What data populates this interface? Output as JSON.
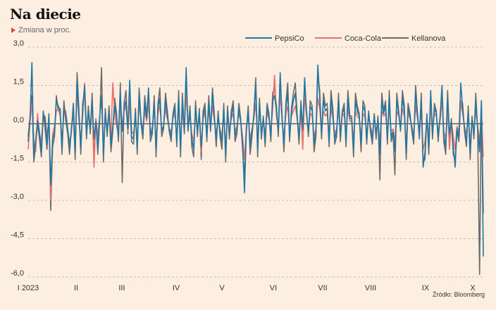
{
  "header": {
    "title": "Na diecie",
    "subtitle": "Zmiana w proc."
  },
  "footer": {
    "source": "Źródło: Bloomberg"
  },
  "colors": {
    "background": "#fcefe2",
    "pepsico": "#1f78a4",
    "cocacola": "#e9706a",
    "kellanova": "#6b6b6b",
    "accent": "#e8403a"
  },
  "chart_data": {
    "type": "line",
    "title": "Na diecie",
    "subtitle": "Zmiana w proc.",
    "xlabel": "",
    "ylabel": "",
    "ylim": [
      -6.0,
      3.0
    ],
    "y_ticks": [
      "3,0",
      "1,5",
      "0,0",
      "-1,5",
      "-3,0",
      "-4,5",
      "-6,0"
    ],
    "y_tick_values": [
      3.0,
      1.5,
      0.0,
      -1.5,
      -3.0,
      -4.5,
      -6.0
    ],
    "x_tick_labels": [
      "I 2023",
      "II",
      "III",
      "IV",
      "V",
      "VI",
      "VII",
      "VIII",
      "IX",
      "X"
    ],
    "grid": "horizontal dashed",
    "legend_position": "top-right",
    "series": [
      {
        "name": "PepsiCo",
        "values": [
          -0.7,
          0.2,
          2.4,
          -1.3,
          -0.6,
          0.1,
          -0.3,
          -1.1,
          0.4,
          0.2,
          -0.8,
          0.3,
          -2.4,
          -0.6,
          -0.3,
          0.9,
          0.7,
          0.5,
          -0.9,
          0.6,
          0.3,
          -0.2,
          -0.9,
          -0.3,
          0.8,
          -1.1,
          1.7,
          0.3,
          -0.9,
          0.6,
          1.5,
          -0.4,
          0.5,
          -0.2,
          0.9,
          -0.6,
          0.1,
          -0.9,
          0.2,
          1.1,
          -1.2,
          0.4,
          -0.3,
          0.5,
          -0.8,
          -0.1,
          0.7,
          0.2,
          -0.5,
          1.2,
          -0.3,
          0.6,
          0.9,
          -0.2,
          1.7,
          -0.5,
          -0.6,
          0.4,
          -0.9,
          1.2,
          0.1,
          -0.4,
          0.8,
          0.2,
          1.4,
          -0.5,
          -0.2,
          0.8,
          -1.0,
          0.6,
          1.0,
          -0.3,
          -0.1,
          0.9,
          0.3,
          -0.2,
          -0.5,
          0.3,
          0.6,
          -0.7,
          1.0,
          -1.0,
          0.9,
          -0.3,
          2.2,
          -0.2,
          0.5,
          -0.6,
          -1.0,
          0.7,
          -0.3,
          0.4,
          -0.9,
          0.3,
          0.6,
          -0.5,
          0.8,
          -0.2,
          1.2,
          0.2,
          -0.6,
          0.3,
          -0.3,
          -0.7,
          0.6,
          -1.2,
          0.5,
          -0.4,
          0.3,
          0.7,
          -0.5,
          -0.2,
          0.6,
          0.1,
          -0.8,
          -2.7,
          -0.2,
          0.5,
          -0.9,
          -0.3,
          0.3,
          1.5,
          -1.0,
          0.8,
          -0.4,
          0.2,
          -0.7,
          0.6,
          0.3,
          -0.5,
          0.9,
          1.1,
          0.5,
          -0.3,
          2.0,
          0.2,
          -0.8,
          0.6,
          1.2,
          -0.5,
          0.4,
          0.9,
          1.2,
          0.3,
          -0.6,
          0.7,
          -0.2,
          1.8,
          0.4,
          -0.3,
          0.7,
          0.5,
          -0.8,
          -0.3,
          2.3,
          1.0,
          -0.4,
          0.9,
          0.5,
          0.6,
          -0.7,
          1.0,
          0.4,
          -0.6,
          -0.3,
          0.9,
          -0.5,
          0.4,
          0.6,
          -0.7,
          1.0,
          0.2,
          0.2,
          -1.0,
          0.9,
          0.5,
          0.3,
          -0.8,
          0.7,
          0.5,
          -0.6,
          0.4,
          -0.2,
          -0.6,
          0.3,
          -0.4,
          0.2,
          -1.2,
          0.9,
          0.4,
          0.7,
          -0.6,
          1.0,
          -0.5,
          -0.3,
          -1.1,
          0.9,
          0.4,
          -0.2,
          1.0,
          0.5,
          -1.1,
          0.6,
          0.3,
          -0.2,
          -0.6,
          1.2,
          0.3,
          -0.4,
          0.9,
          -1.7,
          -1.1,
          0.3,
          -0.9,
          1.3,
          -0.4,
          0.6,
          0.4,
          -0.5,
          0.2,
          1.5,
          -0.5,
          -0.9,
          1.0,
          -0.4,
          0.1,
          -0.9,
          -1.7,
          -0.2,
          -0.5,
          1.6,
          0.6,
          -0.2,
          -0.7,
          0.5,
          -1.1,
          0.2,
          -0.4,
          0.9,
          -0.2,
          -1.1,
          0.9,
          -5.2
        ]
      },
      {
        "name": "Coca-Cola",
        "values": [
          -1.0,
          0.1,
          0.8,
          -0.7,
          -1.1,
          0.4,
          -0.4,
          -0.7,
          0.3,
          0.3,
          -0.5,
          0.2,
          -3.0,
          -0.4,
          -0.1,
          0.5,
          0.6,
          0.3,
          -0.6,
          0.4,
          0.5,
          -0.2,
          -0.8,
          -0.2,
          0.6,
          -0.9,
          1.2,
          0.1,
          -0.6,
          0.3,
          1.6,
          -0.3,
          0.3,
          -0.1,
          0.7,
          -1.7,
          0.2,
          -0.5,
          0.3,
          1.0,
          -0.8,
          0.2,
          -0.1,
          0.3,
          -0.5,
          1.6,
          0.3,
          -0.1,
          -0.4,
          0.8,
          -0.2,
          0.5,
          0.7,
          -0.3,
          1.1,
          -0.3,
          -0.4,
          0.2,
          -0.6,
          0.7,
          0.2,
          -0.3,
          0.5,
          0.1,
          0.8,
          -0.4,
          -0.1,
          0.5,
          -0.7,
          0.4,
          0.7,
          -0.2,
          -0.1,
          0.6,
          0.2,
          -0.2,
          -0.3,
          0.2,
          0.4,
          -0.5,
          0.6,
          -0.7,
          0.5,
          -0.3,
          1.2,
          -0.1,
          0.3,
          -0.4,
          -0.7,
          0.4,
          -0.2,
          0.3,
          -1.1,
          0.2,
          0.4,
          -0.3,
          0.5,
          -0.1,
          0.7,
          0.1,
          -0.4,
          0.2,
          -0.2,
          -0.5,
          0.4,
          -0.9,
          0.3,
          -0.3,
          0.2,
          0.4,
          -0.3,
          -0.1,
          0.4,
          0.1,
          -0.5,
          -1.4,
          -0.1,
          0.3,
          -0.6,
          -0.2,
          0.2,
          0.8,
          -0.6,
          0.5,
          -0.3,
          0.1,
          -0.4,
          0.4,
          0.2,
          -0.3,
          0.6,
          1.9,
          0.3,
          -0.2,
          1.2,
          0.1,
          -0.5,
          0.4,
          0.7,
          -0.3,
          0.3,
          0.5,
          0.7,
          0.2,
          -0.4,
          0.5,
          -1.0,
          1.1,
          0.3,
          -0.2,
          0.4,
          0.3,
          -0.5,
          -0.2,
          1.0,
          0.6,
          -0.3,
          0.5,
          0.3,
          0.4,
          -0.4,
          0.6,
          0.2,
          -0.4,
          -0.2,
          0.5,
          -0.3,
          0.3,
          0.4,
          -0.4,
          0.6,
          0.1,
          0.1,
          -0.6,
          0.5,
          0.3,
          0.2,
          -0.5,
          0.4,
          0.3,
          -0.4,
          0.3,
          -0.1,
          -0.4,
          0.2,
          -0.3,
          0.1,
          -0.7,
          0.5,
          0.3,
          0.4,
          -0.4,
          0.6,
          -0.3,
          -0.2,
          -0.7,
          0.5,
          0.3,
          -0.1,
          0.6,
          0.3,
          -0.7,
          0.4,
          0.2,
          -0.1,
          -0.4,
          0.7,
          0.2,
          -0.3,
          0.5,
          -1.0,
          -0.7,
          0.2,
          -0.5,
          0.8,
          -0.3,
          0.4,
          0.3,
          -0.3,
          0.1,
          0.9,
          -0.3,
          -0.6,
          0.6,
          -1.0,
          0.1,
          -0.5,
          -1.0,
          -0.1,
          -0.3,
          0.9,
          0.4,
          -0.1,
          -0.4,
          0.3,
          -0.7,
          0.1,
          -0.3,
          0.5,
          -0.1,
          -0.7,
          0.5,
          -1.3
        ]
      },
      {
        "name": "Kellanova",
        "values": [
          -0.5,
          0.3,
          1.1,
          -1.5,
          -0.8,
          0.0,
          -0.6,
          -1.3,
          0.5,
          -0.2,
          -1.0,
          0.4,
          -3.4,
          -0.9,
          -0.5,
          1.1,
          0.5,
          0.6,
          -1.2,
          0.9,
          0.1,
          -0.4,
          -1.2,
          -0.1,
          0.4,
          -1.4,
          2.0,
          0.5,
          -1.2,
          0.8,
          1.3,
          -0.6,
          0.7,
          -0.4,
          1.2,
          -1.4,
          0.2,
          -1.2,
          0.1,
          2.2,
          -1.5,
          0.6,
          -0.5,
          0.7,
          -1.1,
          -0.3,
          1.0,
          0.4,
          -0.7,
          1.6,
          -2.3,
          0.8,
          1.3,
          -0.4,
          1.0,
          -0.7,
          -0.8,
          0.6,
          -1.2,
          1.4,
          0.0,
          -0.6,
          1.1,
          0.3,
          1.2,
          -0.7,
          -0.4,
          1.1,
          -1.3,
          0.8,
          1.4,
          -0.5,
          -0.2,
          1.2,
          0.5,
          -0.3,
          -0.7,
          0.4,
          0.8,
          -0.9,
          1.3,
          -1.3,
          1.2,
          -0.4,
          1.8,
          -0.3,
          0.7,
          -0.9,
          -1.3,
          0.9,
          -0.5,
          0.6,
          -1.4,
          0.5,
          0.8,
          -0.7,
          1.1,
          -0.3,
          1.4,
          0.3,
          -0.9,
          0.5,
          -0.5,
          -1.0,
          0.8,
          -1.5,
          0.7,
          -0.6,
          0.5,
          0.9,
          -0.7,
          -0.4,
          0.8,
          0.2,
          -1.0,
          -2.0,
          -0.3,
          0.7,
          -1.2,
          -0.5,
          0.4,
          1.8,
          -1.3,
          1.0,
          -0.6,
          0.3,
          -0.9,
          0.8,
          0.4,
          -0.7,
          1.2,
          1.4,
          0.7,
          -0.5,
          1.7,
          0.3,
          -1.1,
          0.8,
          1.6,
          -0.7,
          0.6,
          1.2,
          1.6,
          0.4,
          -0.8,
          0.9,
          -0.3,
          1.5,
          0.5,
          -0.5,
          0.9,
          0.7,
          -1.1,
          -0.5,
          1.9,
          1.3,
          -0.6,
          1.2,
          0.7,
          0.8,
          -0.9,
          1.3,
          0.6,
          -0.8,
          -0.5,
          1.2,
          -0.7,
          0.5,
          0.8,
          -0.9,
          1.3,
          0.3,
          0.3,
          -1.3,
          1.2,
          0.7,
          0.4,
          -1.1,
          0.9,
          0.7,
          -0.8,
          0.5,
          -0.3,
          -0.8,
          0.4,
          -0.6,
          0.3,
          -2.2,
          1.2,
          0.5,
          0.9,
          -0.8,
          1.3,
          -0.7,
          -0.4,
          -2.0,
          1.2,
          0.5,
          -0.3,
          1.3,
          0.7,
          -1.4,
          0.8,
          0.4,
          -0.3,
          -0.8,
          1.5,
          0.4,
          -0.6,
          1.2,
          -1.5,
          -1.4,
          0.4,
          -1.2,
          1.0,
          -0.6,
          0.8,
          0.5,
          -0.7,
          0.3,
          1.2,
          -0.7,
          -1.2,
          1.3,
          -0.6,
          0.2,
          -1.2,
          -1.4,
          -0.3,
          -0.7,
          0.9,
          0.8,
          -0.3,
          -0.9,
          0.7,
          -1.4,
          0.3,
          -0.6,
          1.2,
          -0.3,
          -5.9,
          0.9,
          -3.5
        ]
      }
    ]
  }
}
